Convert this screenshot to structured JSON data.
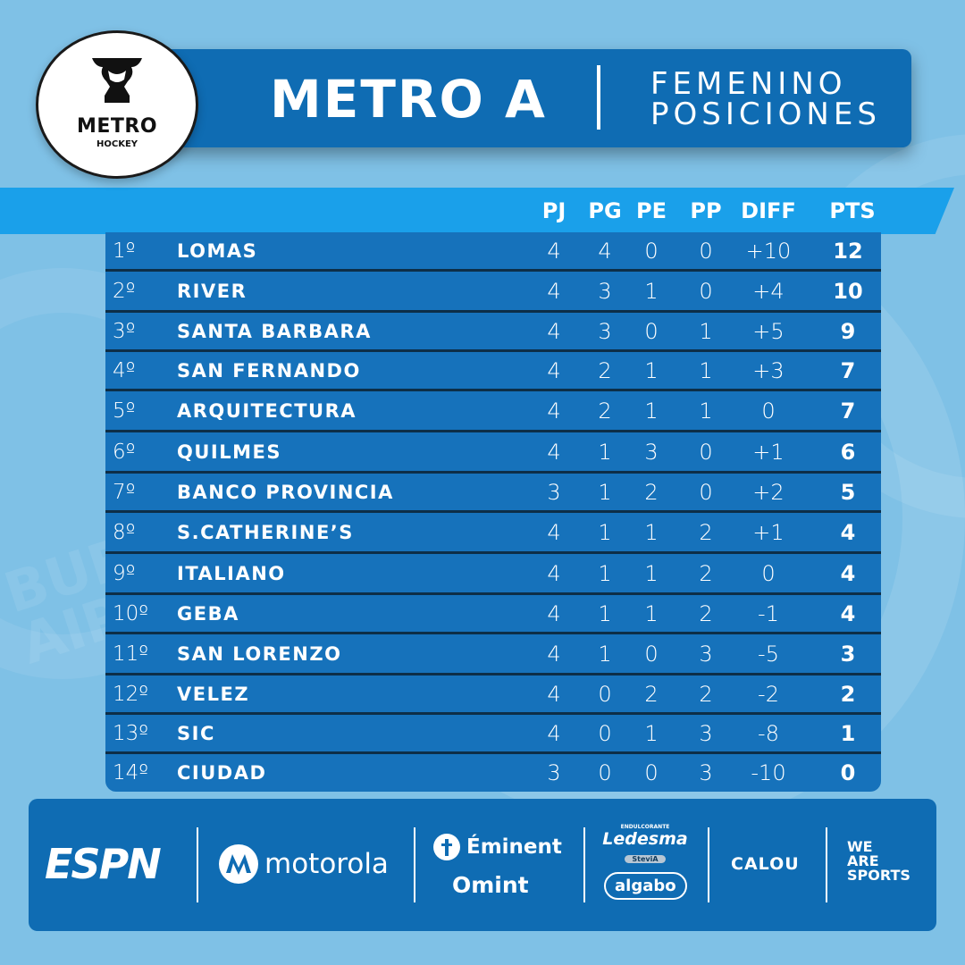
{
  "title": {
    "main": "METRO A",
    "line1": "FEMENINO",
    "line2": "POSICIONES"
  },
  "logo": {
    "name": "METRO",
    "sub": "HOCKEY"
  },
  "columns": [
    "PJ",
    "PG",
    "PE",
    "PP",
    "DIFF",
    "PTS"
  ],
  "standings": [
    {
      "pos": "1º",
      "team": "LOMAS",
      "pj": "4",
      "pg": "4",
      "pe": "0",
      "pp": "0",
      "diff": "+10",
      "pts": "12"
    },
    {
      "pos": "2º",
      "team": "RIVER",
      "pj": "4",
      "pg": "3",
      "pe": "1",
      "pp": "0",
      "diff": "+4",
      "pts": "10"
    },
    {
      "pos": "3º",
      "team": "SANTA BARBARA",
      "pj": "4",
      "pg": "3",
      "pe": "0",
      "pp": "1",
      "diff": "+5",
      "pts": "9"
    },
    {
      "pos": "4º",
      "team": "SAN FERNANDO",
      "pj": "4",
      "pg": "2",
      "pe": "1",
      "pp": "1",
      "diff": "+3",
      "pts": "7"
    },
    {
      "pos": "5º",
      "team": "ARQUITECTURA",
      "pj": "4",
      "pg": "2",
      "pe": "1",
      "pp": "1",
      "diff": "0",
      "pts": "7"
    },
    {
      "pos": "6º",
      "team": "QUILMES",
      "pj": "4",
      "pg": "1",
      "pe": "3",
      "pp": "0",
      "diff": "+1",
      "pts": "6"
    },
    {
      "pos": "7º",
      "team": "BANCO PROVINCIA",
      "pj": "3",
      "pg": "1",
      "pe": "2",
      "pp": "0",
      "diff": "+2",
      "pts": "5"
    },
    {
      "pos": "8º",
      "team": "S.CATHERINE’S",
      "pj": "4",
      "pg": "1",
      "pe": "1",
      "pp": "2",
      "diff": "+1",
      "pts": "4"
    },
    {
      "pos": "9º",
      "team": "ITALIANO",
      "pj": "4",
      "pg": "1",
      "pe": "1",
      "pp": "2",
      "diff": "0",
      "pts": "4"
    },
    {
      "pos": "10º",
      "team": "GEBA",
      "pj": "4",
      "pg": "1",
      "pe": "1",
      "pp": "2",
      "diff": "-1",
      "pts": "4"
    },
    {
      "pos": "11º",
      "team": "SAN LORENZO",
      "pj": "4",
      "pg": "1",
      "pe": "0",
      "pp": "3",
      "diff": "-5",
      "pts": "3"
    },
    {
      "pos": "12º",
      "team": "VELEZ",
      "pj": "4",
      "pg": "0",
      "pe": "2",
      "pp": "2",
      "diff": "-2",
      "pts": "2"
    },
    {
      "pos": "13º",
      "team": "SIC",
      "pj": "4",
      "pg": "0",
      "pe": "1",
      "pp": "3",
      "diff": "-8",
      "pts": "1"
    },
    {
      "pos": "14º",
      "team": "CIUDAD",
      "pj": "3",
      "pg": "0",
      "pe": "0",
      "pp": "3",
      "diff": "-10",
      "pts": "0"
    }
  ],
  "sponsors": {
    "espn": "ESPN",
    "motorola": "motorola",
    "eminent": "Éminent",
    "omint": "Omint",
    "ledesma_tag": "ENDULCORANTE",
    "ledesma": "Ledesma",
    "stevia": "SteviA",
    "algabo": "algabo",
    "calou": "CALOU",
    "weare1": "WE",
    "weare2": "ARE",
    "weare3": "SPORTS"
  },
  "watermark": {
    "line1": "BUENOS",
    "line2": "AIRES"
  },
  "colors": {
    "background": "#7fc1e6",
    "panel": "#0f6cb3",
    "band": "#1aa0ea",
    "table": "#1672bb",
    "separator": "#0d2e47"
  }
}
